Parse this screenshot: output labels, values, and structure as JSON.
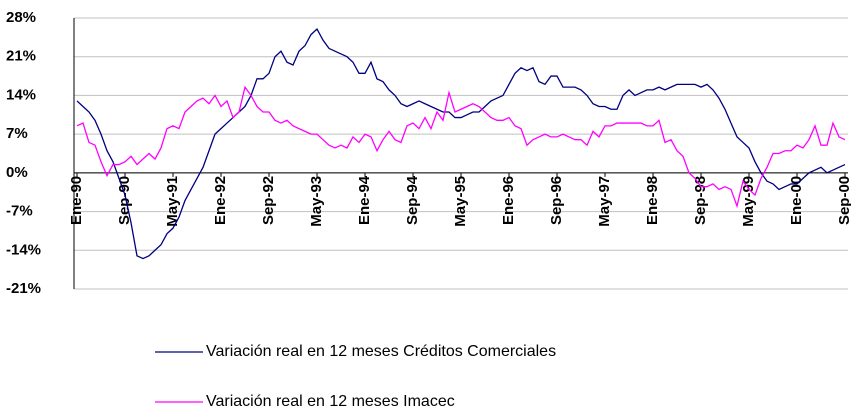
{
  "chart_data": {
    "type": "line",
    "categories": [
      "Ene-90",
      null,
      null,
      null,
      null,
      null,
      null,
      null,
      "Sep-90",
      null,
      null,
      null,
      null,
      null,
      null,
      null,
      "May-91",
      null,
      null,
      null,
      null,
      null,
      null,
      null,
      "Ene-92",
      null,
      null,
      null,
      null,
      null,
      null,
      null,
      "Sep-92",
      null,
      null,
      null,
      null,
      null,
      null,
      null,
      "May-93",
      null,
      null,
      null,
      null,
      null,
      null,
      null,
      "Ene-94",
      null,
      null,
      null,
      null,
      null,
      null,
      null,
      "Sep-94",
      null,
      null,
      null,
      null,
      null,
      null,
      null,
      "May-95",
      null,
      null,
      null,
      null,
      null,
      null,
      null,
      "Ene-96",
      null,
      null,
      null,
      null,
      null,
      null,
      null,
      "Sep-96",
      null,
      null,
      null,
      null,
      null,
      null,
      null,
      "May-97",
      null,
      null,
      null,
      null,
      null,
      null,
      null,
      "Ene-98",
      null,
      null,
      null,
      null,
      null,
      null,
      null,
      "Sep-98",
      null,
      null,
      null,
      null,
      null,
      null,
      null,
      "May-99",
      null,
      null,
      null,
      null,
      null,
      null,
      null,
      "Ene-00",
      null,
      null,
      null,
      null,
      null,
      null,
      null,
      "Sep-00"
    ],
    "series": [
      {
        "name": "Variación real en 12 meses Créditos Comerciales",
        "color": "#000080",
        "values": [
          13,
          12,
          11,
          9.5,
          7,
          4,
          2,
          -1,
          -4,
          -9,
          -15,
          -15.5,
          -15,
          -14,
          -13,
          -11,
          -10,
          -8,
          -5,
          -3,
          -1,
          1,
          4,
          7,
          8,
          9,
          10,
          11,
          12,
          14,
          17,
          17,
          18,
          21,
          22,
          20,
          19.5,
          22,
          23,
          25,
          26,
          24,
          22.5,
          22,
          21.5,
          21,
          20,
          18,
          18,
          20,
          17,
          16.5,
          15,
          14,
          12.5,
          12,
          12.5,
          13,
          12.5,
          12,
          11.5,
          11,
          11,
          10,
          10,
          10.5,
          11,
          11,
          12,
          13,
          13.5,
          14,
          16,
          18,
          19,
          18.5,
          19,
          16.5,
          16,
          17.5,
          17.5,
          15.5,
          15.5,
          15.5,
          15,
          14,
          12.5,
          12,
          12,
          11.5,
          11.5,
          14,
          15,
          14,
          14.5,
          15,
          15,
          15.5,
          15,
          15.5,
          16,
          16,
          16,
          16,
          15.5,
          16,
          15,
          13.5,
          11.5,
          9,
          6.5,
          5.5,
          4.5,
          2,
          0,
          -1.5,
          -2,
          -3,
          -2.5,
          -2,
          -2,
          -1,
          0,
          0.5,
          1,
          0,
          0.5,
          1,
          1.5
        ]
      },
      {
        "name": "Variación real en 12 meses Imacec",
        "color": "#ff00ff",
        "values": [
          8.5,
          9,
          5.5,
          5,
          2,
          -0.5,
          1.5,
          1.5,
          2,
          3,
          1.5,
          2.5,
          3.5,
          2.5,
          4.5,
          8,
          8.5,
          8,
          11,
          12,
          13,
          13.5,
          12.5,
          14,
          12,
          13,
          10,
          11,
          15.5,
          14,
          12,
          11,
          11,
          9.5,
          9,
          9.5,
          8.5,
          8,
          7.5,
          7,
          7,
          6,
          5,
          4.5,
          5,
          4.5,
          6.5,
          5.5,
          7,
          6.5,
          4,
          6,
          7.5,
          6,
          5.5,
          8.5,
          9,
          8,
          10,
          8,
          11,
          9.5,
          14.5,
          11,
          11.5,
          12,
          12.5,
          12,
          11,
          10,
          9.5,
          9.5,
          10,
          8.5,
          8,
          5,
          6,
          6.5,
          7,
          6.5,
          6.5,
          7,
          6.5,
          6,
          6,
          5,
          7.5,
          6.5,
          8.5,
          8.5,
          9,
          9,
          9,
          9,
          9,
          8.5,
          8.5,
          9.5,
          5.5,
          6,
          4,
          3,
          0,
          -1,
          -2.5,
          -2.5,
          -2,
          -3,
          -2.5,
          -3,
          -6,
          -1.5,
          -3,
          -4,
          -1,
          1,
          3.5,
          3.5,
          4,
          4,
          5,
          4.5,
          6,
          8.5,
          5,
          5,
          9,
          6.5,
          6
        ]
      }
    ],
    "ylim": [
      -21,
      28
    ],
    "yticks": [
      {
        "value": -21,
        "label": "-21%"
      },
      {
        "value": -14,
        "label": "-14%"
      },
      {
        "value": -7,
        "label": "-7%"
      },
      {
        "value": 0,
        "label": "0%"
      },
      {
        "value": 7,
        "label": "7%"
      },
      {
        "value": 14,
        "label": "14%"
      },
      {
        "value": 21,
        "label": "21%"
      },
      {
        "value": 28,
        "label": "28%"
      }
    ],
    "grid": true
  }
}
